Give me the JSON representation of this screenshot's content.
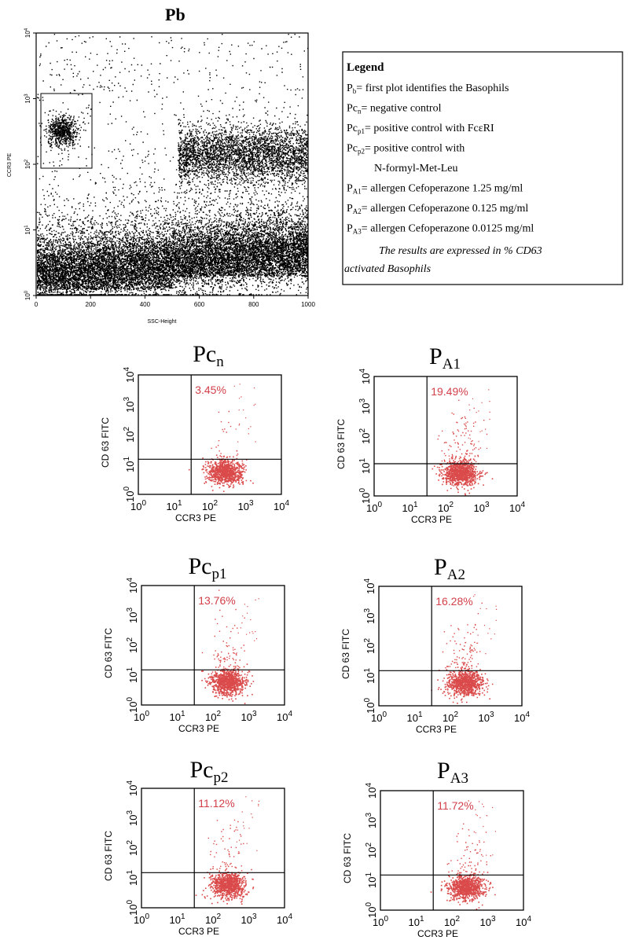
{
  "chart_data": [
    {
      "type": "scatter",
      "id": "pb",
      "title": "Pb",
      "xlabel": "SSC-Height",
      "ylabel": "CCR3 PE",
      "x_ticks": [
        "0",
        "200",
        "400",
        "600",
        "800",
        "1000"
      ],
      "xlim": [
        0,
        1000
      ],
      "y_scale": "log",
      "ylim": [
        1,
        10000
      ],
      "y_ticks": [
        "10",
        "10",
        "10",
        "10",
        "10"
      ],
      "y_tick_exps": [
        "0",
        "1",
        "2",
        "3",
        "4"
      ],
      "gate": {
        "x_range": [
          10,
          200
        ],
        "y_range": [
          100,
          1000
        ]
      },
      "point_color": "#000000"
    },
    {
      "type": "scatter",
      "id": "pcn",
      "title": "Pc",
      "title_sub": "n",
      "percent": "3.45%",
      "xlabel": "CCR3 PE",
      "ylabel": "CD 63 FITC",
      "x_scale": "log",
      "y_scale": "log",
      "xlim": [
        1,
        10000
      ],
      "ylim": [
        1,
        10000
      ],
      "tick_base": "10",
      "tick_exps": [
        "0",
        "1",
        "2",
        "3",
        "4"
      ],
      "quadrant": {
        "x": 30,
        "y": 15
      },
      "activated_fraction": 0.0345,
      "point_color": "#d42a2a"
    },
    {
      "type": "scatter",
      "id": "pa1",
      "title": "P",
      "title_sub": "A1",
      "percent": "19.49%",
      "xlabel": "CCR3 PE",
      "ylabel": "CD 63 FITC",
      "x_scale": "log",
      "y_scale": "log",
      "xlim": [
        1,
        10000
      ],
      "ylim": [
        1,
        10000
      ],
      "tick_base": "10",
      "tick_exps": [
        "0",
        "1",
        "2",
        "3",
        "4"
      ],
      "quadrant": {
        "x": 30,
        "y": 12
      },
      "activated_fraction": 0.1949,
      "point_color": "#d42a2a"
    },
    {
      "type": "scatter",
      "id": "pcp1",
      "title": "Pc",
      "title_sub": "p1",
      "percent": "13.76%",
      "xlabel": "CCR3 PE",
      "ylabel": "CD 63 FITC",
      "x_scale": "log",
      "y_scale": "log",
      "xlim": [
        1,
        10000
      ],
      "ylim": [
        1,
        10000
      ],
      "tick_base": "10",
      "tick_exps": [
        "0",
        "1",
        "2",
        "3",
        "4"
      ],
      "quadrant": {
        "x": 30,
        "y": 15
      },
      "activated_fraction": 0.1376,
      "point_color": "#d42a2a"
    },
    {
      "type": "scatter",
      "id": "pa2",
      "title": "P",
      "title_sub": "A2",
      "percent": "16.28%",
      "xlabel": "CCR3 PE",
      "ylabel": "CD 63 FITC",
      "x_scale": "log",
      "y_scale": "log",
      "xlim": [
        1,
        10000
      ],
      "ylim": [
        1,
        10000
      ],
      "tick_base": "10",
      "tick_exps": [
        "0",
        "1",
        "2",
        "3",
        "4"
      ],
      "quadrant": {
        "x": 30,
        "y": 15
      },
      "activated_fraction": 0.1628,
      "point_color": "#d42a2a"
    },
    {
      "type": "scatter",
      "id": "pcp2",
      "title": "Pc",
      "title_sub": "p2",
      "percent": "11.12%",
      "xlabel": "CCR3 PE",
      "ylabel": "CD 63 FITC",
      "x_scale": "log",
      "y_scale": "log",
      "xlim": [
        1,
        10000
      ],
      "ylim": [
        1,
        10000
      ],
      "tick_base": "10",
      "tick_exps": [
        "0",
        "1",
        "2",
        "3",
        "4"
      ],
      "quadrant": {
        "x": 30,
        "y": 15
      },
      "activated_fraction": 0.1112,
      "point_color": "#d42a2a"
    },
    {
      "type": "scatter",
      "id": "pa3",
      "title": "P",
      "title_sub": "A3",
      "percent": "11.72%",
      "xlabel": "CCR3 PE",
      "ylabel": "CD 63 FITC",
      "x_scale": "log",
      "y_scale": "log",
      "xlim": [
        1,
        10000
      ],
      "ylim": [
        1,
        10000
      ],
      "tick_base": "10",
      "tick_exps": [
        "0",
        "1",
        "2",
        "3",
        "4"
      ],
      "quadrant": {
        "x": 30,
        "y": 15
      },
      "activated_fraction": 0.1172,
      "point_color": "#d42a2a"
    }
  ],
  "legend": {
    "title": "Legend",
    "entries": [
      {
        "sym": "P",
        "sub": "b",
        "text": "= first plot identifies the Basophils"
      },
      {
        "sym": "Pc",
        "sub": "n",
        "text": "= negative control"
      },
      {
        "sym": "Pc",
        "sub": "p1",
        "text": "= positive control with FcεRI"
      },
      {
        "sym": "Pc",
        "sub": "p2",
        "text": "= positive control with"
      },
      {
        "sym": "",
        "sub": "",
        "text": "N-formyl-Met-Leu"
      },
      {
        "sym": "P",
        "sub": "A1",
        "text": "= allergen Cefoperazone 1.25 mg/ml"
      },
      {
        "sym": "P",
        "sub": "A2",
        "text": "= allergen Cefoperazone 0.125 mg/ml"
      },
      {
        "sym": "P",
        "sub": "A3",
        "text": "= allergen Cefoperazone 0.0125 mg/ml"
      }
    ],
    "note_line1": "The results are expressed in % CD63",
    "note_line2": "activated Basophils"
  }
}
